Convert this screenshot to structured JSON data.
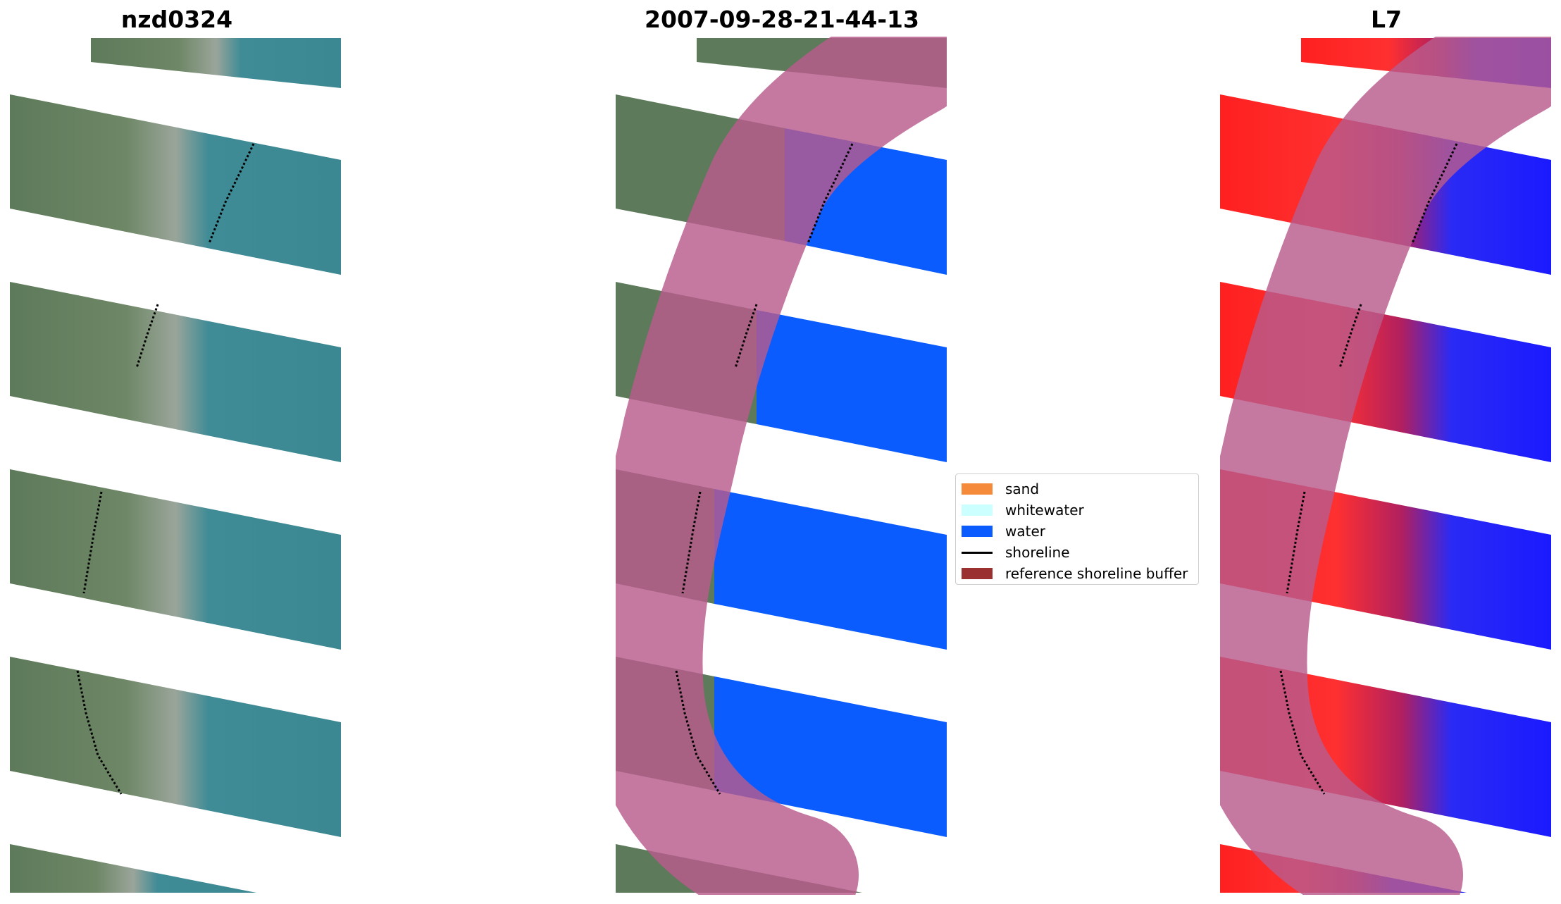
{
  "panels": [
    {
      "title": "nzd0324",
      "kind": "rgb"
    },
    {
      "title": "2007-09-28-21-44-13",
      "kind": "classified"
    },
    {
      "title": "L7",
      "kind": "index"
    }
  ],
  "legend": {
    "items": [
      {
        "label": "sand",
        "color": "#f58a3a",
        "type": "patch"
      },
      {
        "label": "whitewater",
        "color": "#ccffff",
        "type": "patch"
      },
      {
        "label": "water",
        "color": "#0a5cff",
        "type": "patch"
      },
      {
        "label": "shoreline",
        "color": "#000000",
        "type": "line"
      },
      {
        "label": "reference shoreline buffer",
        "color": "#9b3030",
        "type": "patch"
      }
    ]
  },
  "colors": {
    "land_rgb": "#5c7a5c",
    "sea_rgb": "#3d8a94",
    "buffer": "#b85c8c",
    "water": "#0a5cff",
    "index_land": "#ff2020",
    "index_water": "#2020ff"
  }
}
